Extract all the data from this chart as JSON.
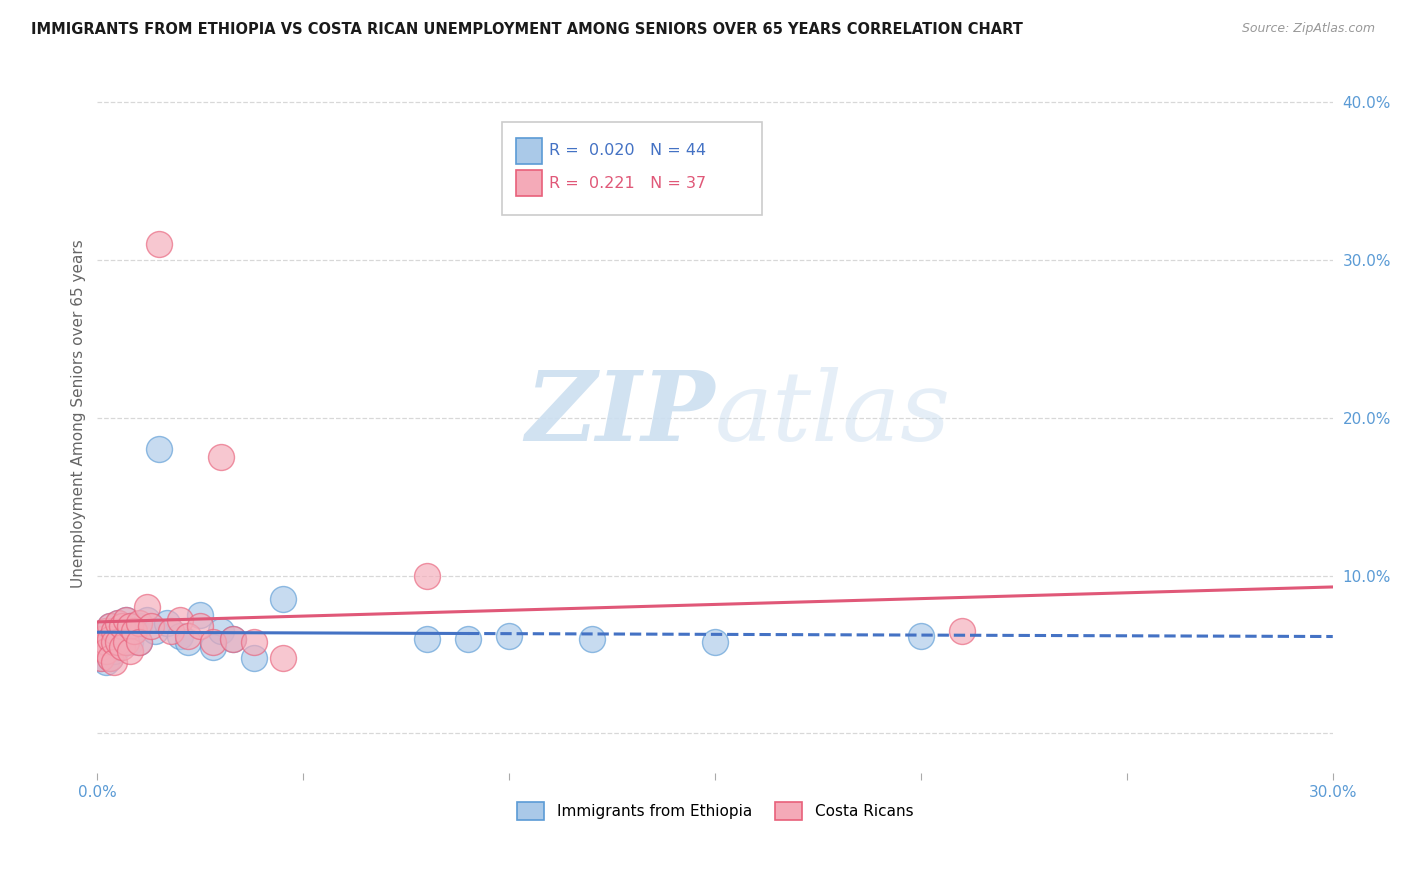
{
  "title": "IMMIGRANTS FROM ETHIOPIA VS COSTA RICAN UNEMPLOYMENT AMONG SENIORS OVER 65 YEARS CORRELATION CHART",
  "source": "Source: ZipAtlas.com",
  "ylabel": "Unemployment Among Seniors over 65 years",
  "xlim": [
    0.0,
    0.3
  ],
  "ylim": [
    -0.025,
    0.43
  ],
  "blue_R": 0.02,
  "blue_N": 44,
  "pink_R": 0.221,
  "pink_N": 37,
  "blue_color": "#aac9e8",
  "pink_color": "#f4aab8",
  "blue_edge_color": "#5b9bd5",
  "pink_edge_color": "#e8607a",
  "blue_line_color": "#4472c4",
  "pink_line_color": "#e05878",
  "legend_blue_color": "#4472c4",
  "legend_pink_color": "#e05878",
  "watermark_color": "#ccdff0",
  "grid_color": "#d8d8d8",
  "background_color": "#ffffff",
  "blue_x": [
    0.001,
    0.001,
    0.001,
    0.002,
    0.002,
    0.002,
    0.002,
    0.003,
    0.003,
    0.003,
    0.003,
    0.004,
    0.004,
    0.004,
    0.005,
    0.005,
    0.005,
    0.006,
    0.006,
    0.007,
    0.007,
    0.008,
    0.008,
    0.009,
    0.01,
    0.01,
    0.012,
    0.014,
    0.015,
    0.017,
    0.02,
    0.022,
    0.025,
    0.028,
    0.03,
    0.033,
    0.038,
    0.045,
    0.08,
    0.09,
    0.1,
    0.12,
    0.15,
    0.2
  ],
  "blue_y": [
    0.06,
    0.055,
    0.048,
    0.065,
    0.058,
    0.052,
    0.045,
    0.068,
    0.06,
    0.055,
    0.048,
    0.065,
    0.058,
    0.052,
    0.07,
    0.062,
    0.055,
    0.068,
    0.058,
    0.072,
    0.062,
    0.068,
    0.058,
    0.065,
    0.068,
    0.058,
    0.072,
    0.065,
    0.18,
    0.07,
    0.062,
    0.058,
    0.075,
    0.055,
    0.065,
    0.06,
    0.048,
    0.085,
    0.06,
    0.06,
    0.062,
    0.06,
    0.058,
    0.062
  ],
  "pink_x": [
    0.001,
    0.001,
    0.001,
    0.002,
    0.002,
    0.002,
    0.003,
    0.003,
    0.003,
    0.004,
    0.004,
    0.004,
    0.005,
    0.005,
    0.006,
    0.006,
    0.007,
    0.007,
    0.008,
    0.008,
    0.009,
    0.01,
    0.01,
    0.012,
    0.013,
    0.015,
    0.018,
    0.02,
    0.022,
    0.025,
    0.028,
    0.03,
    0.033,
    0.038,
    0.045,
    0.08,
    0.21
  ],
  "pink_y": [
    0.06,
    0.055,
    0.048,
    0.065,
    0.058,
    0.052,
    0.068,
    0.06,
    0.048,
    0.065,
    0.058,
    0.045,
    0.07,
    0.058,
    0.068,
    0.055,
    0.072,
    0.058,
    0.068,
    0.052,
    0.065,
    0.07,
    0.058,
    0.08,
    0.068,
    0.31,
    0.065,
    0.072,
    0.062,
    0.068,
    0.058,
    0.175,
    0.06,
    0.058,
    0.048,
    0.1,
    0.065
  ],
  "ytick_positions": [
    0.0,
    0.1,
    0.2,
    0.3,
    0.4
  ],
  "ytick_labels": [
    "",
    "10.0%",
    "20.0%",
    "30.0%",
    "40.0%"
  ],
  "xtick_positions": [
    0.0,
    0.05,
    0.1,
    0.15,
    0.2,
    0.25,
    0.3
  ],
  "xtick_labels": [
    "0.0%",
    "",
    "",
    "",
    "",
    "",
    "30.0%"
  ]
}
